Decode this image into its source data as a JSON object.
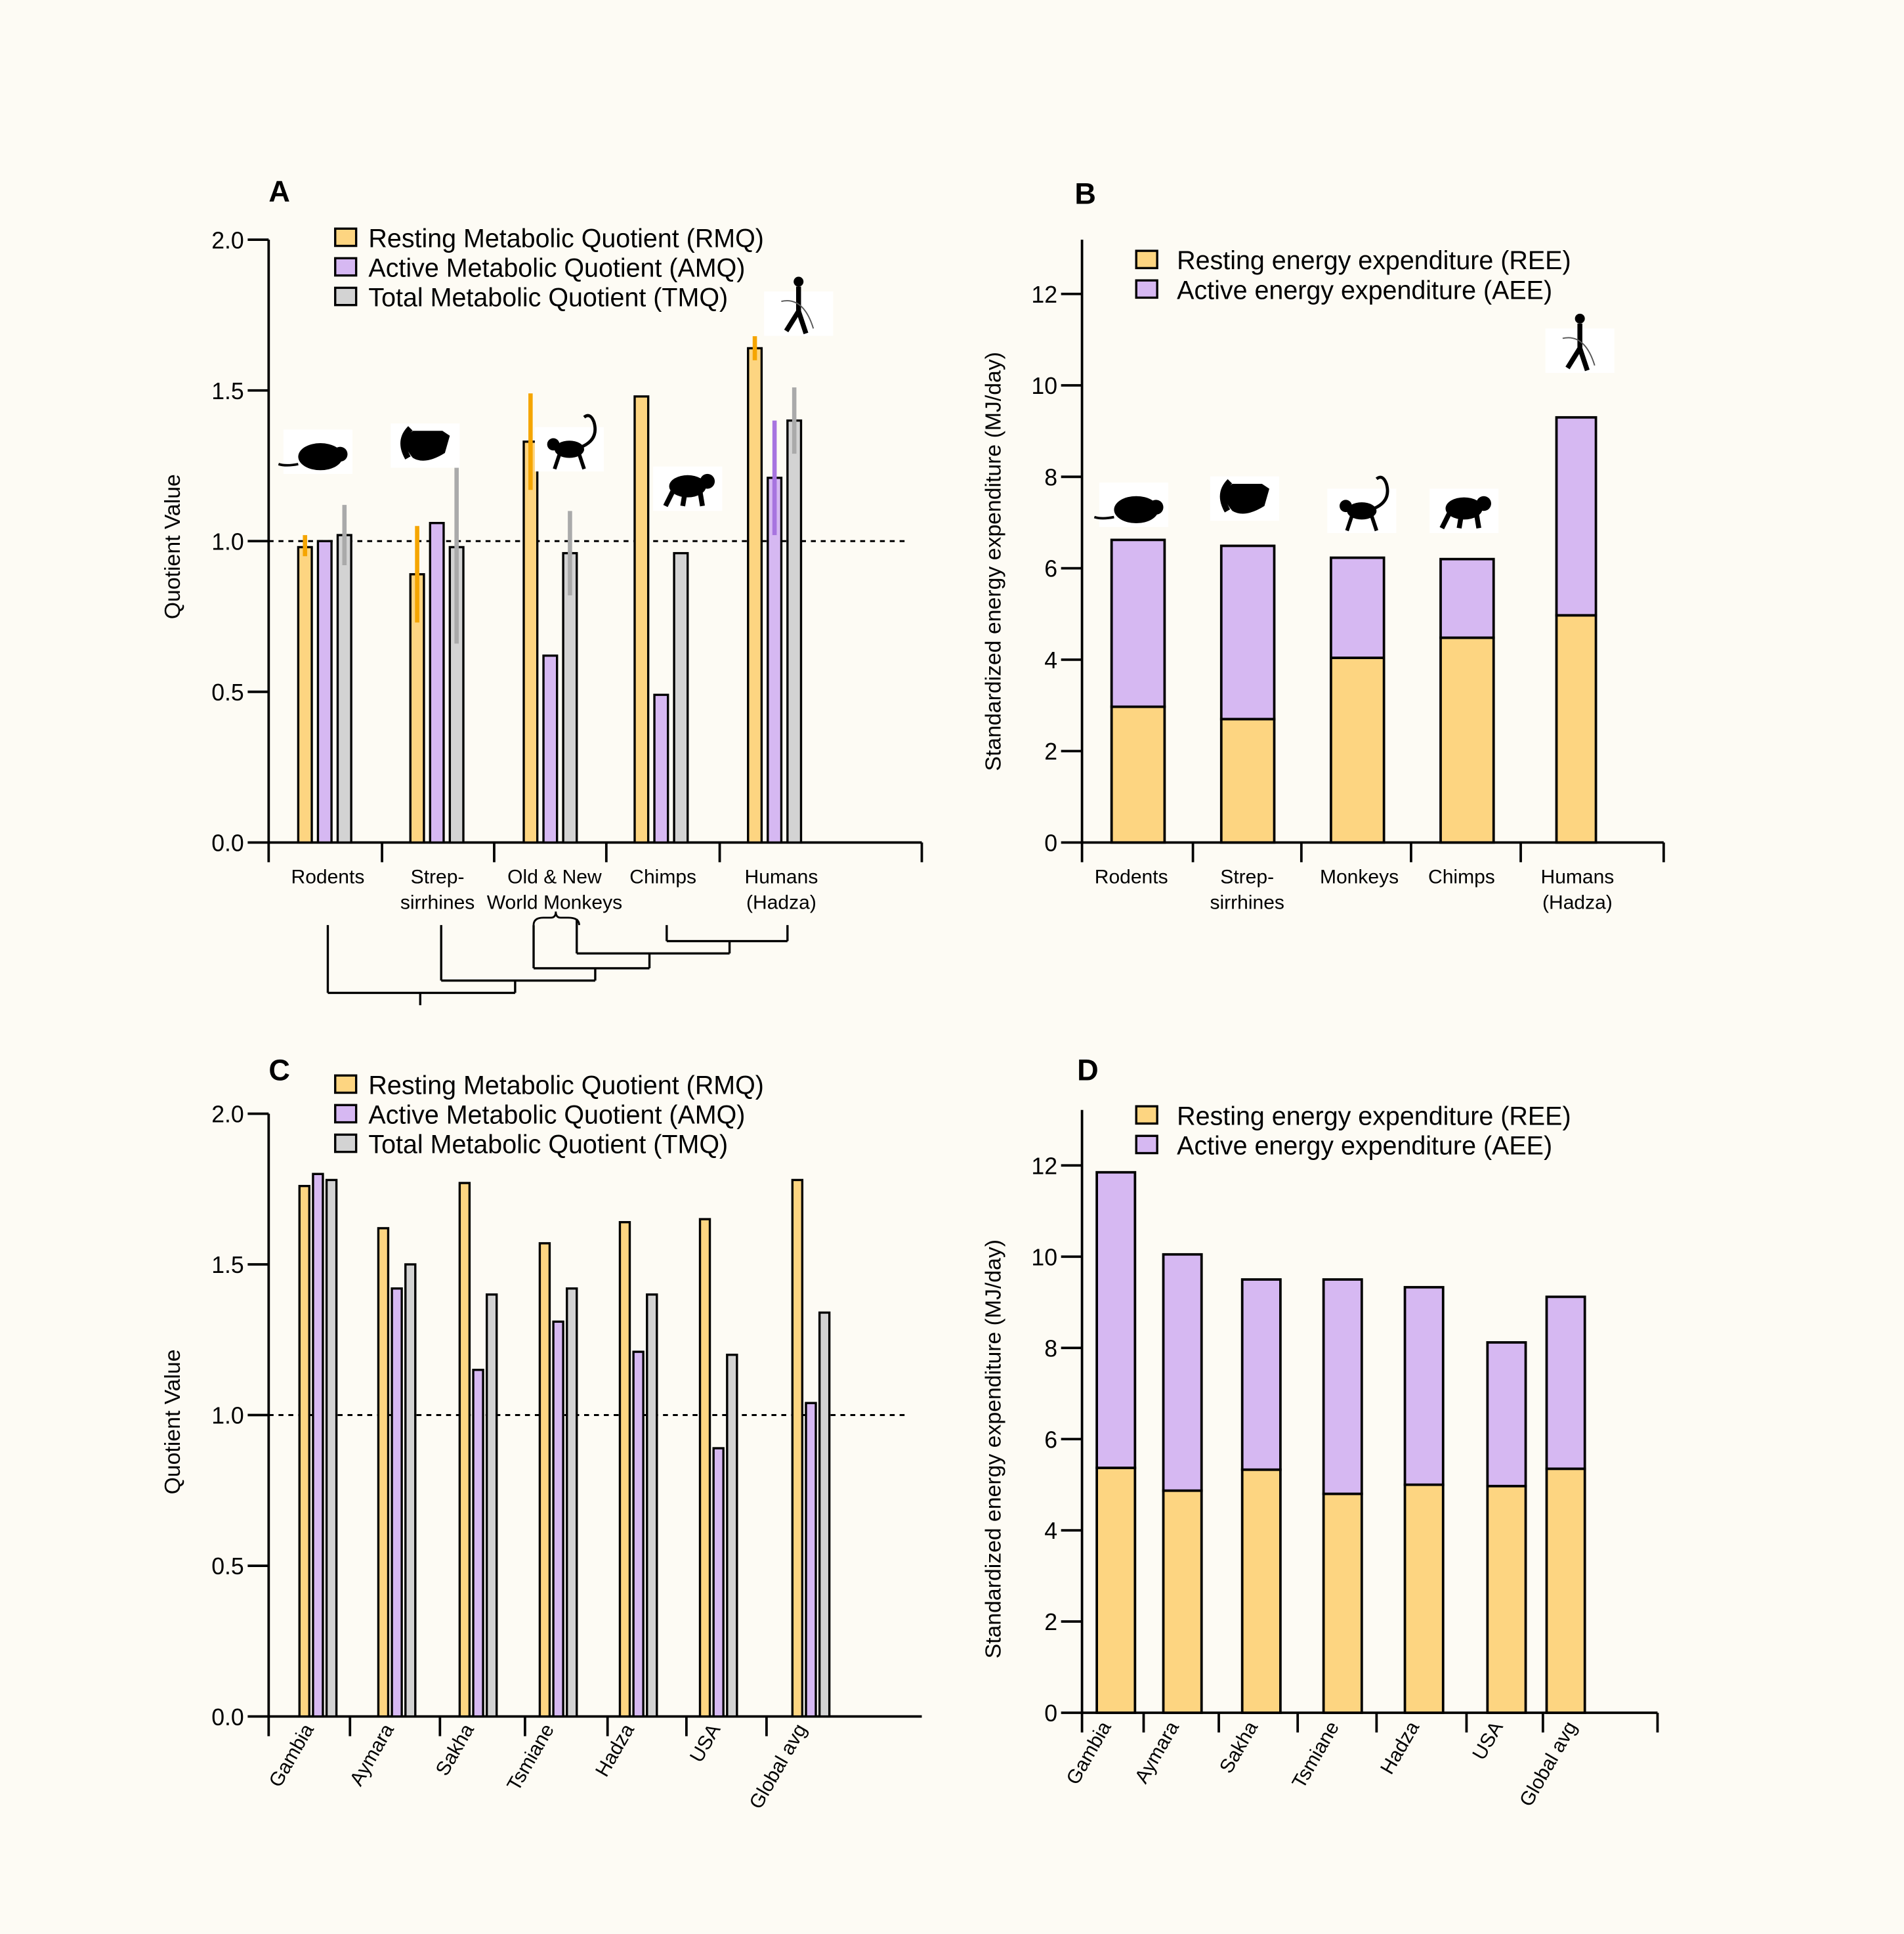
{
  "colors": {
    "background": "#fdfbf4",
    "rmq": "#fdd581",
    "amq": "#d6b8f2",
    "tmq": "#d3d3d3",
    "ree": "#fdd581",
    "aee": "#d6b8f2",
    "rmq_error": "#f5a500",
    "amq_error": "#a774e0",
    "tmq_error": "#aaaaaa"
  },
  "chart_data": [
    {
      "panel": "A",
      "type": "bar",
      "ylabel": "Quotient Value",
      "ylim": [
        0,
        2.0
      ],
      "yticks": [
        "0.0",
        "0.5",
        "1.0",
        "1.5",
        "2.0"
      ],
      "reference_line": 1.0,
      "categories": [
        [
          "Rodents"
        ],
        [
          "Strep-",
          "sirrhines"
        ],
        [
          "Old & New",
          "World Monkeys"
        ],
        [
          "Chimps"
        ],
        [
          "Humans",
          "(Hadza)"
        ]
      ],
      "silhouette_icons": [
        "rodent-icon",
        "lemur-icon",
        "monkey-icon",
        "chimp-icon",
        "human-hunter-icon"
      ],
      "legend": [
        "Resting Metabolic Quotient (RMQ)",
        "Active Metabolic Quotient (AMQ)",
        "Total Metabolic Quotient (TMQ)"
      ],
      "legend_position": "top",
      "series": [
        {
          "name": "Resting Metabolic Quotient (RMQ)",
          "values": [
            0.98,
            0.89,
            1.33,
            1.48,
            1.64
          ],
          "error": [
            [
              0.95,
              1.02
            ],
            [
              0.73,
              1.05
            ],
            [
              1.17,
              1.49
            ],
            null,
            [
              1.6,
              1.68
            ]
          ]
        },
        {
          "name": "Active Metabolic Quotient (AMQ)",
          "values": [
            1.0,
            1.06,
            0.62,
            0.49,
            1.21
          ],
          "error": [
            null,
            null,
            null,
            null,
            [
              1.02,
              1.4
            ]
          ]
        },
        {
          "name": "Total Metabolic Quotient (TMQ)",
          "values": [
            1.02,
            0.98,
            0.96,
            0.96,
            1.4
          ],
          "error": [
            [
              0.92,
              1.12
            ],
            [
              0.66,
              1.3
            ],
            [
              0.82,
              1.1
            ],
            null,
            [
              1.29,
              1.51
            ]
          ]
        }
      ],
      "phylogeny_tree": true
    },
    {
      "panel": "B",
      "type": "bar",
      "stacked": true,
      "ylabel": "Standardized energy expenditure (MJ/day)",
      "ylim": [
        0,
        13.2
      ],
      "yticks": [
        "0",
        "2",
        "4",
        "6",
        "8",
        "10",
        "12"
      ],
      "categories": [
        [
          "Rodents"
        ],
        [
          "Strep-",
          "sirrhines"
        ],
        [
          "Monkeys"
        ],
        [
          "Chimps"
        ],
        [
          "Humans",
          "(Hadza)"
        ]
      ],
      "silhouette_icons": [
        "rodent-icon",
        "lemur-icon",
        "monkey-icon",
        "chimp-icon",
        "human-hunter-icon"
      ],
      "legend": [
        "Resting energy expenditure (REE)",
        "Active energy expenditure (AEE)"
      ],
      "legend_position": "top",
      "series": [
        {
          "name": "Resting energy expenditure (REE)",
          "values": [
            2.97,
            2.7,
            4.04,
            4.48,
            4.97
          ]
        },
        {
          "name": "Active energy expenditure (AEE)",
          "values": [
            3.65,
            3.79,
            2.19,
            1.72,
            4.33
          ]
        }
      ]
    },
    {
      "panel": "C",
      "type": "bar",
      "ylabel": "Quotient Value",
      "ylim": [
        0,
        2.0
      ],
      "yticks": [
        "0.0",
        "0.5",
        "1.0",
        "1.5",
        "2.0"
      ],
      "reference_line": 1.0,
      "categories": [
        "Gambia",
        "Aymara",
        "Sakha",
        "Tsmiane",
        "Hadza",
        "USA",
        "Global avg"
      ],
      "legend": [
        "Resting Metabolic Quotient (RMQ)",
        "Active Metabolic Quotient (AMQ)",
        "Total Metabolic Quotient (TMQ)"
      ],
      "legend_position": "top",
      "series": [
        {
          "name": "Resting Metabolic Quotient (RMQ)",
          "values": [
            1.76,
            1.62,
            1.77,
            1.57,
            1.64,
            1.65,
            1.78
          ]
        },
        {
          "name": "Active Metabolic Quotient (AMQ)",
          "values": [
            1.8,
            1.42,
            1.15,
            1.31,
            1.21,
            0.89,
            1.04
          ]
        },
        {
          "name": "Total Metabolic Quotient (TMQ)",
          "values": [
            1.78,
            1.5,
            1.4,
            1.42,
            1.4,
            1.2,
            1.34
          ]
        }
      ]
    },
    {
      "panel": "D",
      "type": "bar",
      "stacked": true,
      "ylabel": "Standardized energy expenditure (MJ/day)",
      "ylim": [
        0,
        12.0
      ],
      "yticks": [
        "0",
        "2",
        "4",
        "6",
        "8",
        "10",
        "12"
      ],
      "categories": [
        "Gambia",
        "Aymara",
        "Sakha",
        "Tsmiane",
        "Hadza",
        "USA",
        "Global avg"
      ],
      "legend": [
        "Resting energy expenditure (REE)",
        "Active energy expenditure (AEE)"
      ],
      "legend_position": "top",
      "series": [
        {
          "name": "Resting energy expenditure (REE)",
          "values": [
            5.37,
            4.87,
            5.33,
            4.8,
            5.0,
            4.97,
            5.35
          ]
        },
        {
          "name": "Active energy expenditure (AEE)",
          "values": [
            6.48,
            5.18,
            4.17,
            4.7,
            4.33,
            3.15,
            3.77
          ]
        }
      ]
    }
  ]
}
